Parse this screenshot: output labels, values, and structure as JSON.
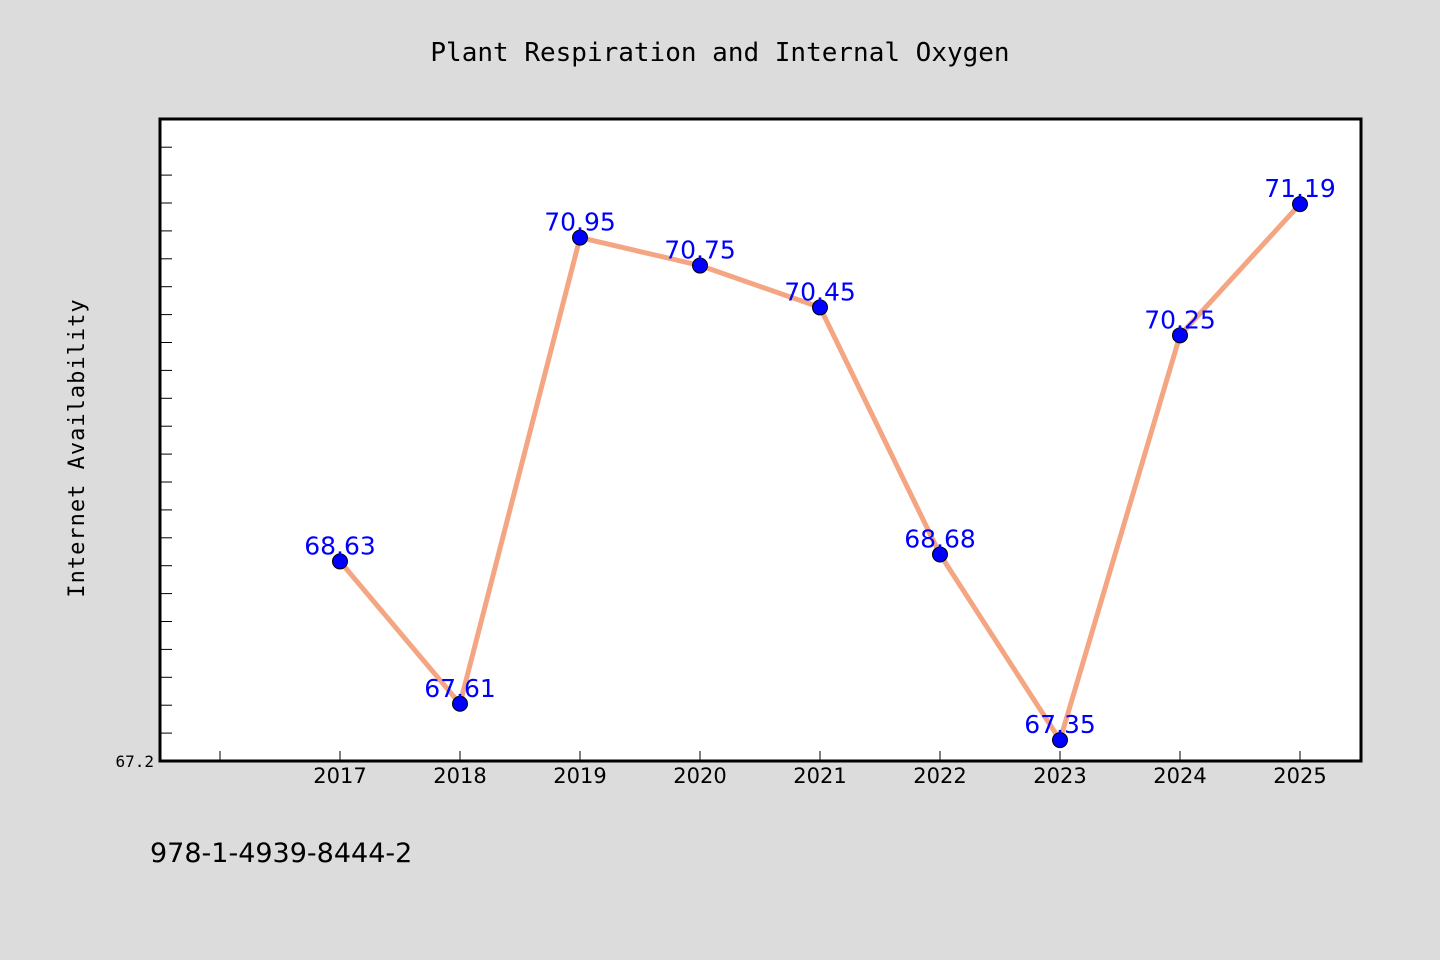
{
  "chart_data": {
    "type": "line",
    "title": "Plant Respiration and Internal Oxygen",
    "xlabel": "",
    "ylabel": "Internet Availability",
    "categories": [
      "2017",
      "2018",
      "2019",
      "2020",
      "2021",
      "2022",
      "2023",
      "2024",
      "2025"
    ],
    "values": [
      68.63,
      67.61,
      70.95,
      70.75,
      70.45,
      68.68,
      67.35,
      70.25,
      71.19
    ],
    "data_labels": [
      "68.63",
      "67.61",
      "70.95",
      "70.75",
      "70.45",
      "68.68",
      "67.35",
      "70.25",
      "71.19"
    ],
    "ylim": [
      67.2,
      71.8
    ],
    "y_tick_labels": [
      "67.2"
    ],
    "grid": false,
    "line_color": "#f4a582",
    "marker_color": "#0000ff",
    "label_color": "#0000ff"
  },
  "footer": {
    "text": "978-1-4939-8444-2"
  }
}
